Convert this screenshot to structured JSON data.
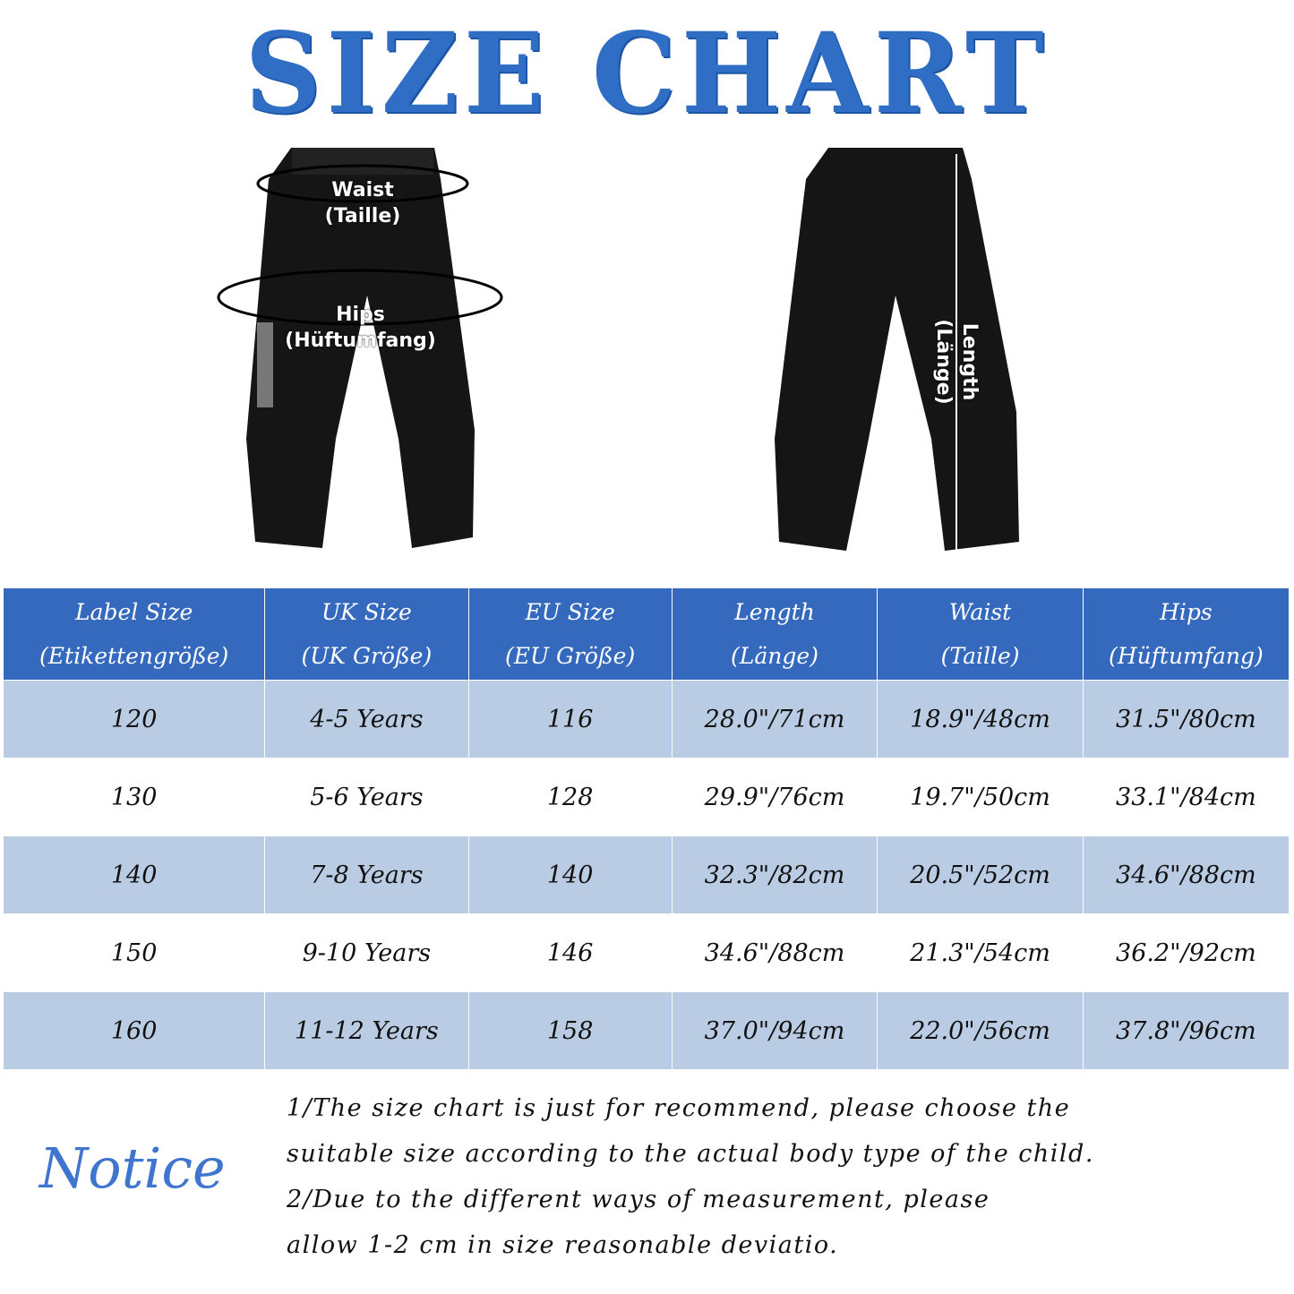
{
  "title": "SIZE CHART",
  "diagram": {
    "waist": "Waist",
    "waist_de": "(Taille)",
    "hips": "Hips",
    "hips_de": "(Hüftumfang)",
    "length": "Length",
    "length_de": "(Länge)"
  },
  "table": {
    "headers": [
      [
        "Label Size",
        "(Etikettengröße)"
      ],
      [
        "UK Size",
        "(UK Größe)"
      ],
      [
        "EU Size",
        "(EU Größe)"
      ],
      [
        "Length",
        "(Länge)"
      ],
      [
        "Waist",
        "(Taille)"
      ],
      [
        "Hips",
        "(Hüftumfang)"
      ]
    ],
    "rows": [
      [
        "120",
        "4-5 Years",
        "116",
        "28.0\"/71cm",
        "18.9\"/48cm",
        "31.5\"/80cm"
      ],
      [
        "130",
        "5-6 Years",
        "128",
        "29.9\"/76cm",
        "19.7\"/50cm",
        "33.1\"/84cm"
      ],
      [
        "140",
        "7-8 Years",
        "140",
        "32.3\"/82cm",
        "20.5\"/52cm",
        "34.6\"/88cm"
      ],
      [
        "150",
        "9-10 Years",
        "146",
        "34.6\"/88cm",
        "21.3\"/54cm",
        "36.2\"/92cm"
      ],
      [
        "160",
        "11-12 Years",
        "158",
        "37.0\"/94cm",
        "22.0\"/56cm",
        "37.8\"/96cm"
      ]
    ]
  },
  "notice": {
    "heading": "Notice",
    "lines": [
      "1/The size chart is just for recommend, please choose the",
      "suitable size according to the actual body type of the child.",
      "2/Due to the different ways of measurement, please",
      "allow 1-2 cm in size reasonable deviatio."
    ]
  },
  "colors": {
    "title": "#2f6ec4",
    "header_bg": "#3569bd",
    "row_alt_bg": "#b9cce4",
    "notice": "#3f74cf"
  }
}
